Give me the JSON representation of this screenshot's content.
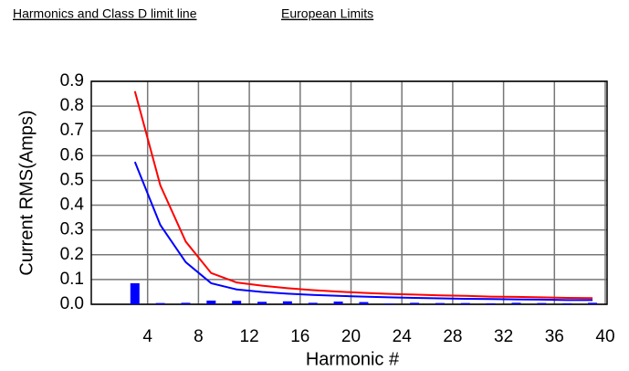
{
  "chart_data": {
    "type": "bar",
    "title": "Harmonics and Class D limit line",
    "subtitle": "European Limits",
    "x_label": "Harmonic #",
    "y_label": "Current RMS(Amps)",
    "x": [
      3,
      5,
      7,
      9,
      11,
      13,
      15,
      17,
      19,
      21,
      23,
      25,
      27,
      29,
      31,
      33,
      35,
      37,
      39
    ],
    "series": [
      {
        "type": "bar",
        "color": "#0000ff",
        "values": [
          0.085,
          0.005,
          0.006,
          0.015,
          0.014,
          0.01,
          0.012,
          0.006,
          0.011,
          0.009,
          0.003,
          0.006,
          0.005,
          0.005,
          0.004,
          0.006,
          0.005,
          0.004,
          0.006
        ]
      },
      {
        "type": "line",
        "color": "#ff0000",
        "values": [
          0.86,
          0.48,
          0.253,
          0.126,
          0.088,
          0.075,
          0.065,
          0.057,
          0.051,
          0.046,
          0.042,
          0.039,
          0.036,
          0.034,
          0.031,
          0.03,
          0.028,
          0.026,
          0.025
        ]
      },
      {
        "type": "line",
        "color": "#0000ff",
        "values": [
          0.575,
          0.32,
          0.17,
          0.085,
          0.06,
          0.05,
          0.043,
          0.038,
          0.034,
          0.031,
          0.028,
          0.026,
          0.024,
          0.022,
          0.021,
          0.02,
          0.019,
          0.017,
          0.017
        ]
      }
    ],
    "xlim": [
      0,
      40
    ],
    "xticks": [
      4,
      8,
      12,
      16,
      20,
      24,
      28,
      32,
      36,
      40
    ],
    "ylim": [
      0,
      0.9
    ],
    "yticks": [
      {
        "value": 0,
        "label": "0.0"
      },
      0.1,
      0.2,
      0.3,
      0.4,
      0.5,
      0.6,
      0.7,
      0.8,
      0.9
    ],
    "grid": true
  }
}
